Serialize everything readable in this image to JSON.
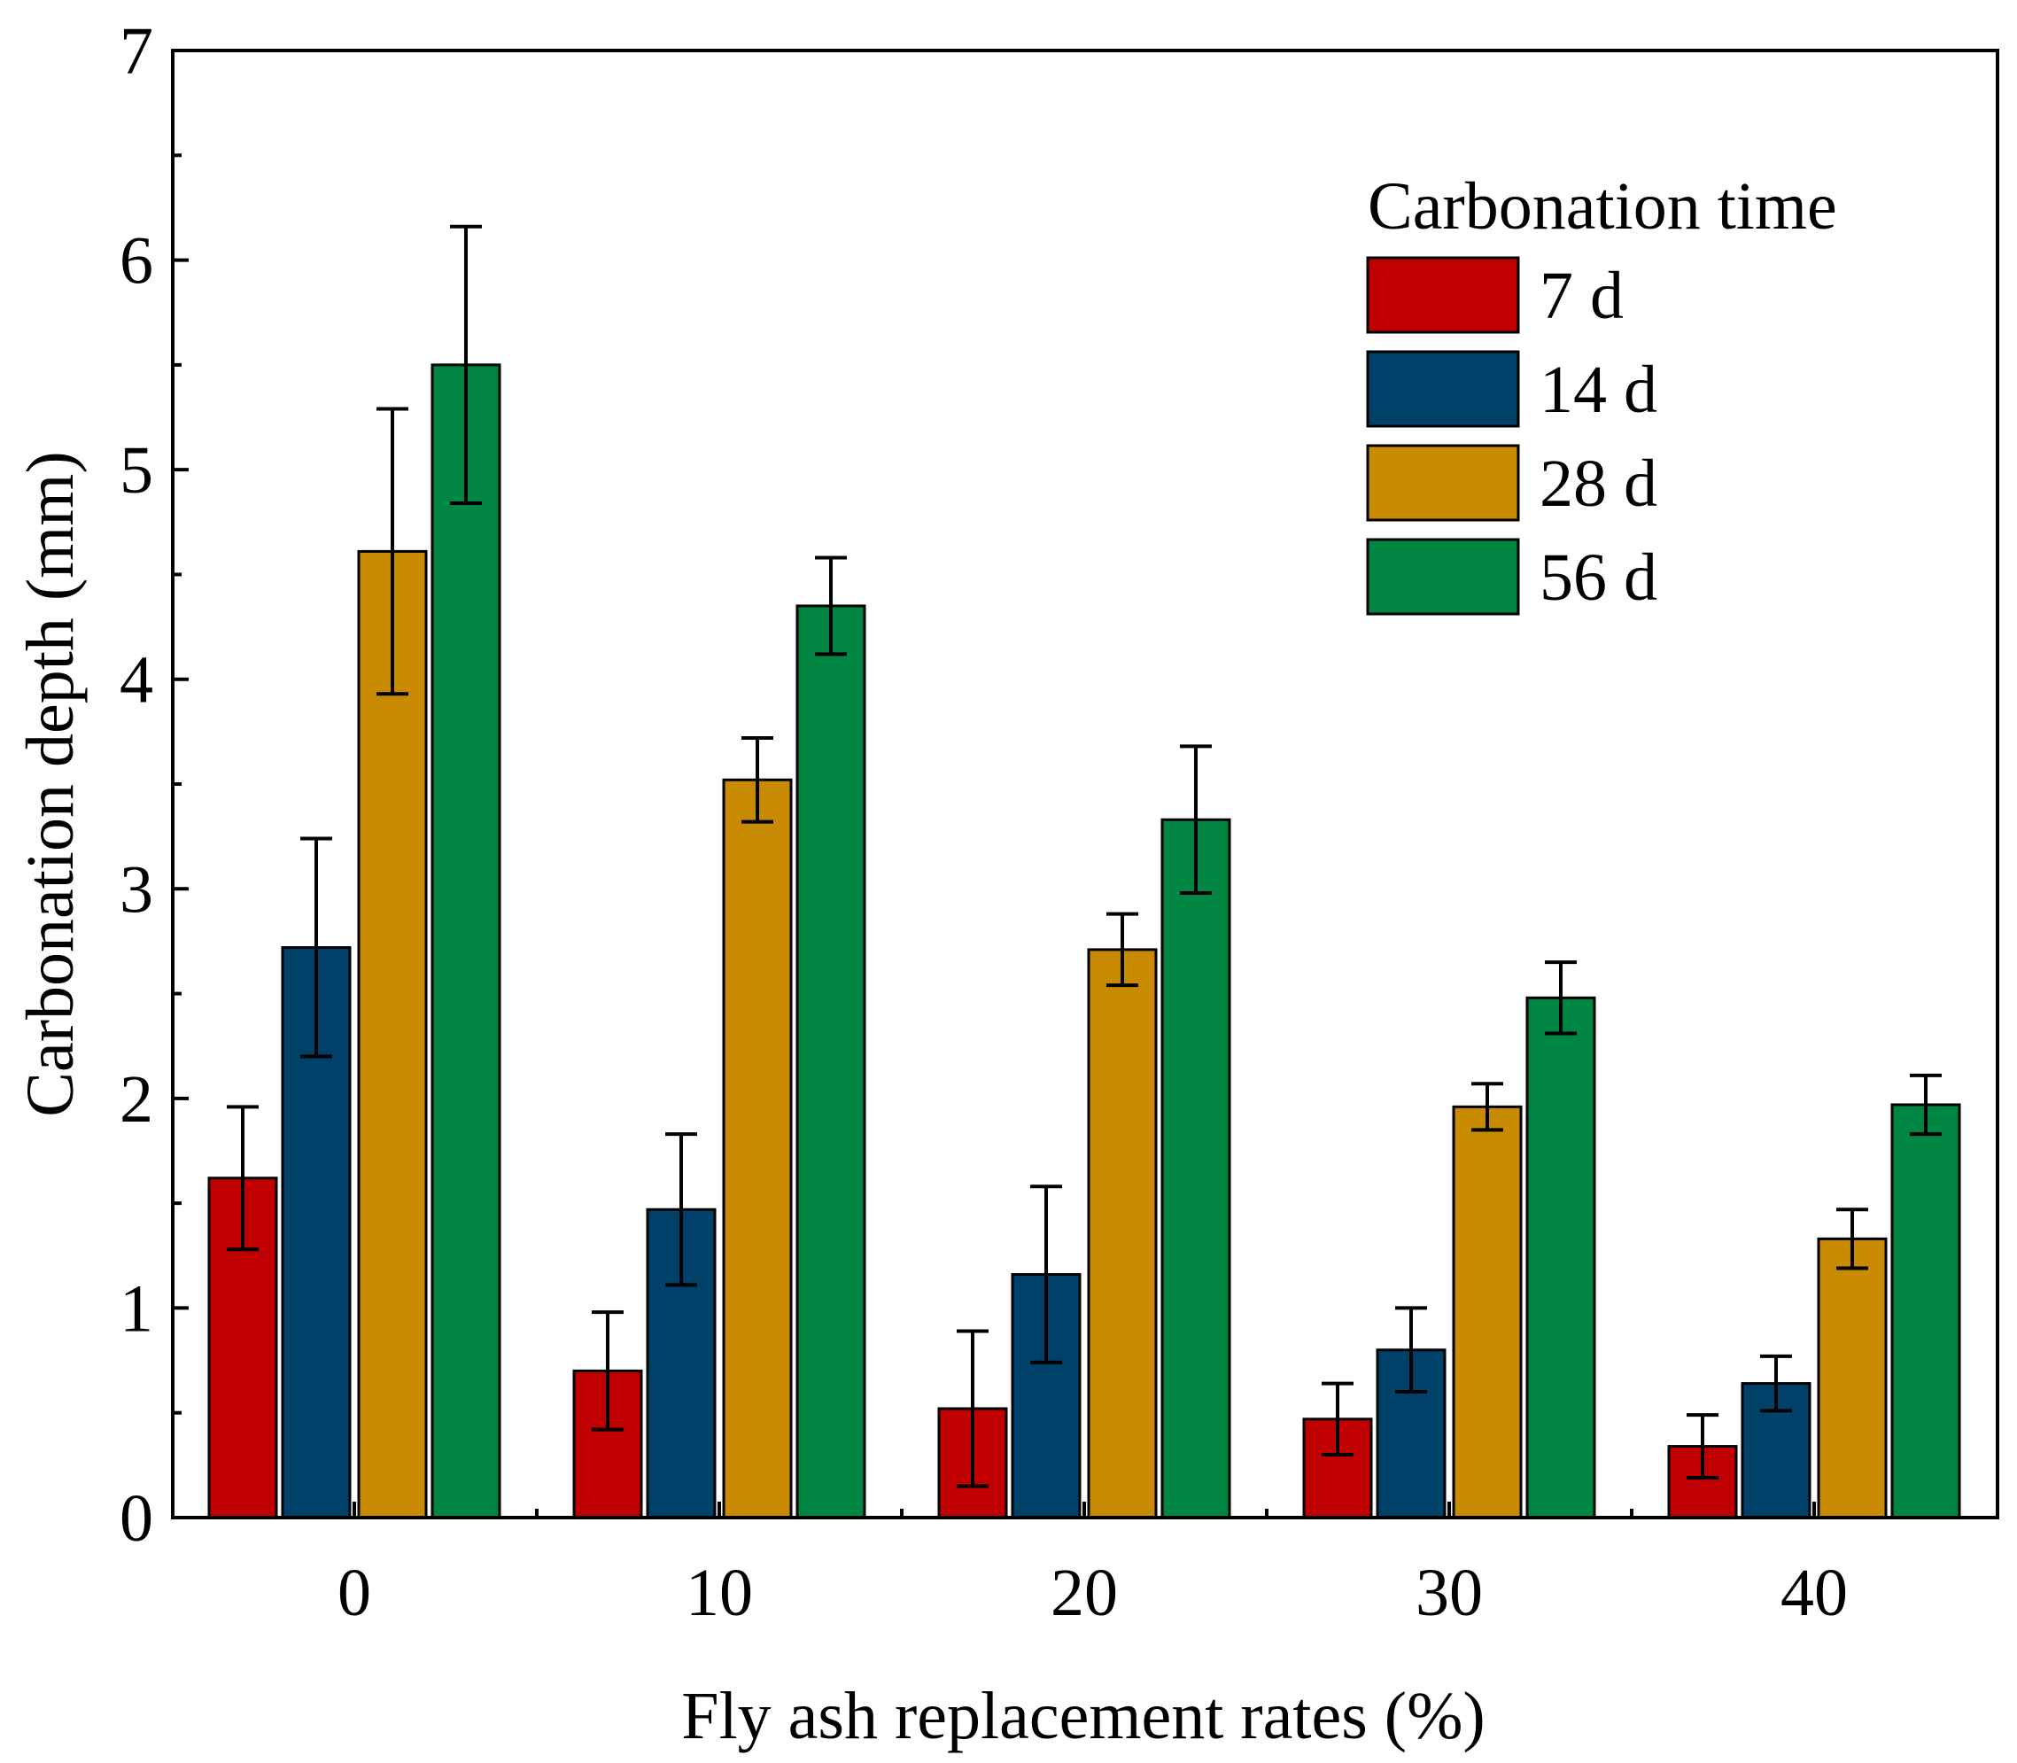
{
  "chart_data": {
    "type": "bar",
    "title": "",
    "xlabel": "Fly ash replacement rates (%)",
    "ylabel": "Carbonation depth (mm)",
    "categories": [
      "0",
      "10",
      "20",
      "30",
      "40"
    ],
    "ylim": [
      0,
      7
    ],
    "yticks": [
      "0",
      "1",
      "2",
      "3",
      "4",
      "5",
      "6",
      "7"
    ],
    "grid": false,
    "legend": {
      "title": "Carbonation time",
      "placement": "top-right"
    },
    "series": [
      {
        "name": "7 d",
        "color": "#C00000",
        "values": [
          1.62,
          0.7,
          0.52,
          0.47,
          0.34
        ],
        "errors": [
          0.34,
          0.28,
          0.37,
          0.17,
          0.15
        ]
      },
      {
        "name": "14 d",
        "color": "#00416A",
        "values": [
          2.72,
          1.47,
          1.16,
          0.8,
          0.64
        ],
        "errors": [
          0.52,
          0.36,
          0.42,
          0.2,
          0.13
        ]
      },
      {
        "name": "28 d",
        "color": "#C88A00",
        "values": [
          4.61,
          3.52,
          2.71,
          1.96,
          1.33
        ],
        "errors": [
          0.68,
          0.2,
          0.17,
          0.11,
          0.14
        ]
      },
      {
        "name": "56 d",
        "color": "#008542",
        "values": [
          5.5,
          4.35,
          3.33,
          2.48,
          1.97
        ],
        "errors": [
          0.66,
          0.23,
          0.35,
          0.17,
          0.14
        ]
      }
    ]
  }
}
